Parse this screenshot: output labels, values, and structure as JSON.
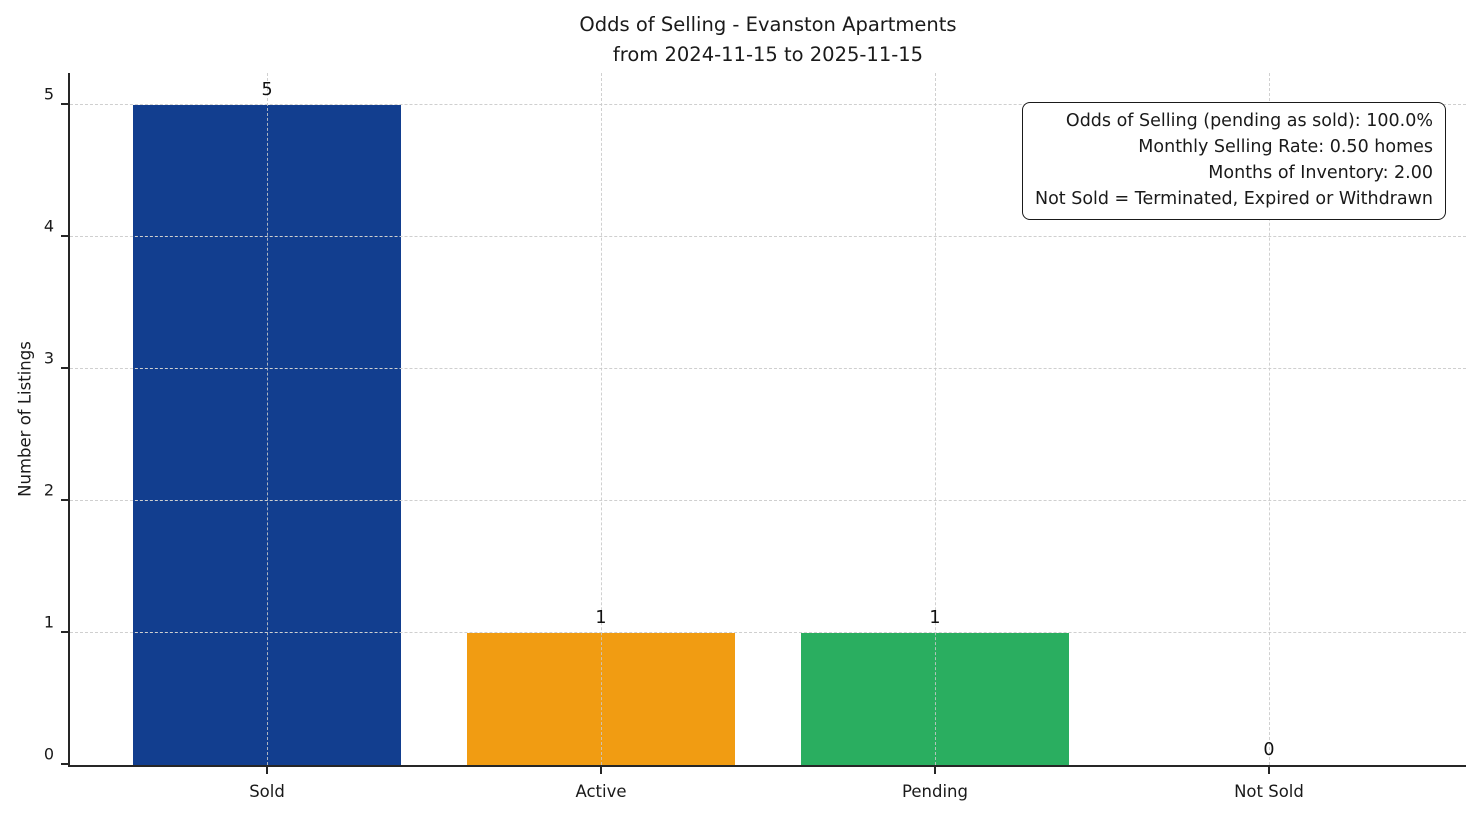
{
  "chart_data": {
    "type": "bar",
    "title_lines": [
      "Odds of Selling - Evanston Apartments",
      "from 2024-11-15 to 2025-11-15"
    ],
    "categories": [
      "Sold",
      "Active",
      "Pending",
      "Not Sold"
    ],
    "values": [
      5,
      1,
      1,
      0
    ],
    "bar_value_labels": [
      "5",
      "1",
      "1",
      "0"
    ],
    "bar_colors": [
      "#123e8f",
      "#f19c12",
      "#2aae60",
      null
    ],
    "xlabel": "",
    "ylabel": "Number of Listings",
    "yticks": [
      0,
      1,
      2,
      3,
      4,
      5
    ],
    "ylim": [
      0,
      5.24
    ],
    "bar_width_fraction": 0.8,
    "x_margin_fraction": 0.59,
    "grid": true,
    "grid_color": "#cfcfcf",
    "axis_color": "#262626",
    "legend": "none",
    "stats_box": {
      "lines": [
        "Odds of Selling (pending as sold): 100.0%",
        "Monthly Selling Rate: 0.50 homes",
        "Months of Inventory: 2.00",
        "Not Sold = Terminated, Expired or Withdrawn"
      ]
    }
  }
}
